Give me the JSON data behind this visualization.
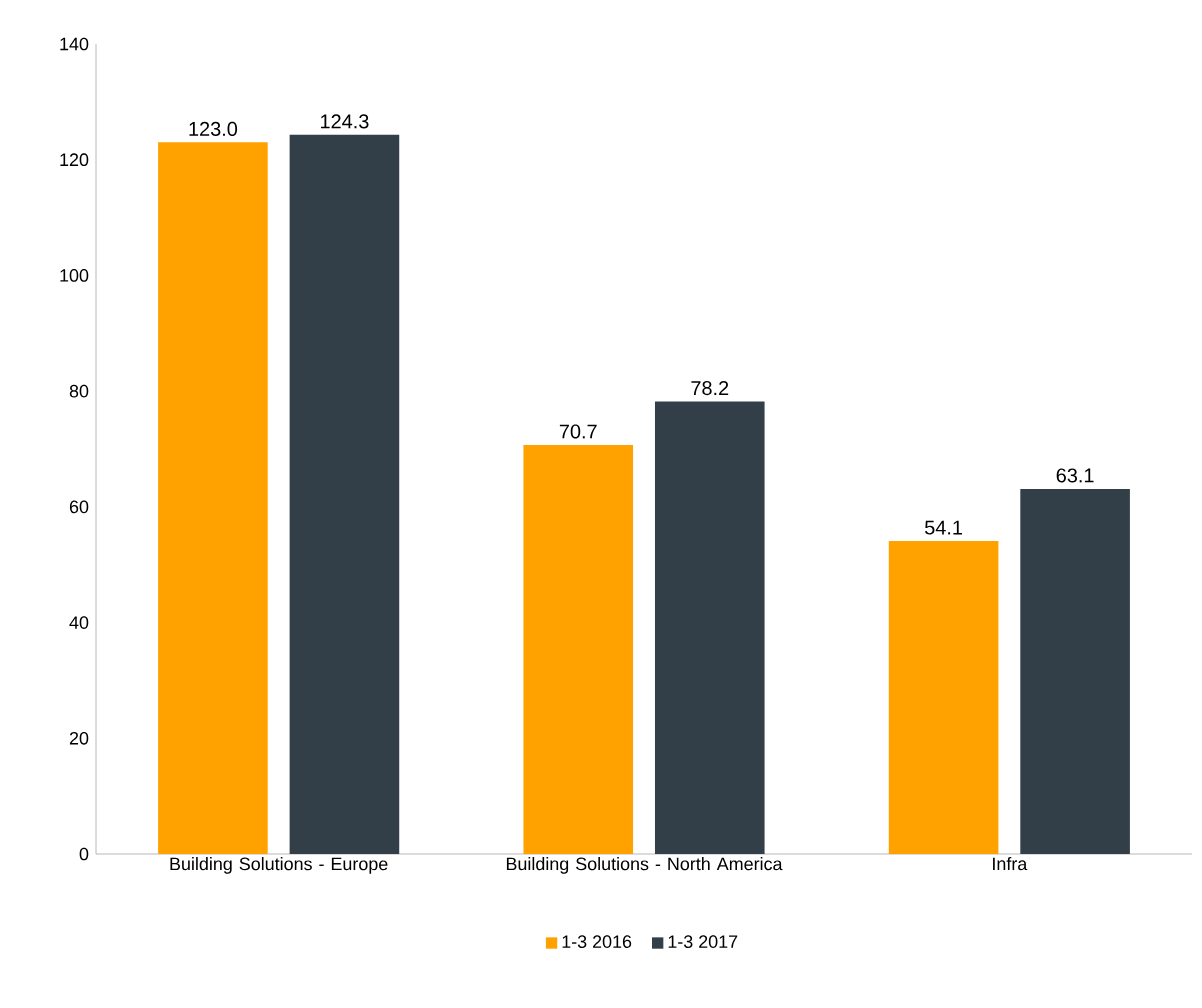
{
  "chart_data": {
    "type": "bar",
    "categories": [
      "Building Solutions - Europe",
      "Building Solutions - North America",
      "Infra"
    ],
    "series": [
      {
        "name": "1-3 2016",
        "color": "#ffa200",
        "values": [
          123.0,
          70.7,
          54.1
        ],
        "value_labels": [
          "123.0",
          "70.7",
          "54.1"
        ]
      },
      {
        "name": "1-3 2017",
        "color": "#333f48",
        "values": [
          124.3,
          78.2,
          63.1
        ],
        "value_labels": [
          "124.3",
          "78.2",
          "63.1"
        ]
      }
    ],
    "ylim": [
      0,
      140
    ],
    "yticks": [
      0,
      20,
      40,
      60,
      80,
      100,
      120,
      140
    ],
    "grid": false,
    "legend": "bottom"
  }
}
